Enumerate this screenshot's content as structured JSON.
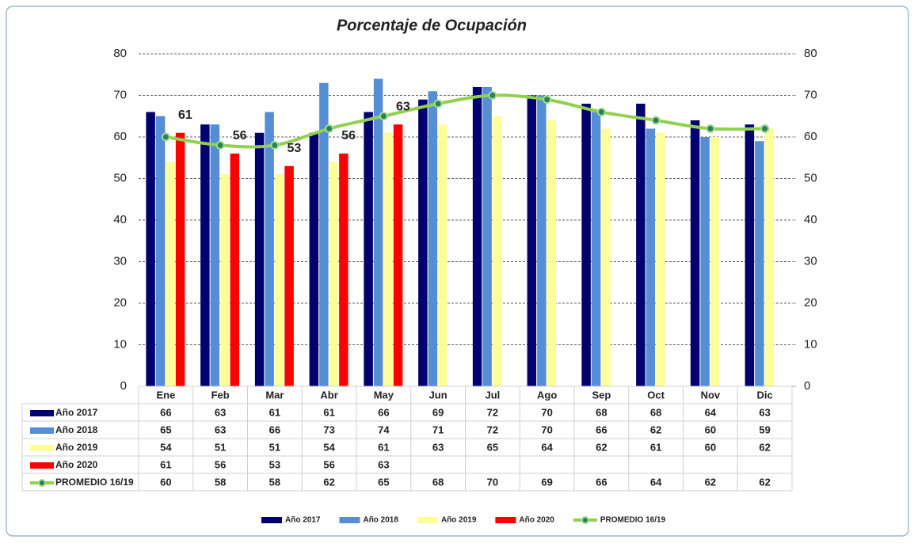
{
  "chart_data": {
    "type": "bar",
    "title": "Porcentaje de Ocupación",
    "categories": [
      "Ene",
      "Feb",
      "Mar",
      "Abr",
      "May",
      "Jun",
      "Jul",
      "Ago",
      "Sep",
      "Oct",
      "Nov",
      "Dic"
    ],
    "series": [
      {
        "name": "Año 2017",
        "color": "#00006e",
        "values": [
          66,
          63,
          61,
          61,
          66,
          69,
          72,
          70,
          68,
          68,
          64,
          63
        ]
      },
      {
        "name": "Año 2018",
        "color": "#558ed5",
        "values": [
          65,
          63,
          66,
          73,
          74,
          71,
          72,
          70,
          66,
          62,
          60,
          59
        ]
      },
      {
        "name": "Año 2019",
        "color": "#ffff99",
        "values": [
          54,
          51,
          51,
          54,
          61,
          63,
          65,
          64,
          62,
          61,
          60,
          62
        ]
      },
      {
        "name": "Año 2020",
        "color": "#ff0000",
        "values": [
          61,
          56,
          53,
          56,
          63,
          null,
          null,
          null,
          null,
          null,
          null,
          null
        ],
        "data_labels": true
      },
      {
        "name": "PROMEDIO 16/19",
        "color": "#92d050",
        "type": "line",
        "values": [
          60,
          58,
          58,
          62,
          65,
          68,
          70,
          69,
          66,
          64,
          62,
          62
        ]
      }
    ],
    "ylim": [
      0,
      80
    ],
    "yticks": [
      0,
      10,
      20,
      30,
      40,
      50,
      60,
      70,
      80
    ],
    "y2lim": [
      0,
      80
    ],
    "y2ticks": [
      0,
      10,
      20,
      30,
      40,
      50,
      60,
      70,
      80
    ],
    "grid": true,
    "legend": "bottom"
  }
}
